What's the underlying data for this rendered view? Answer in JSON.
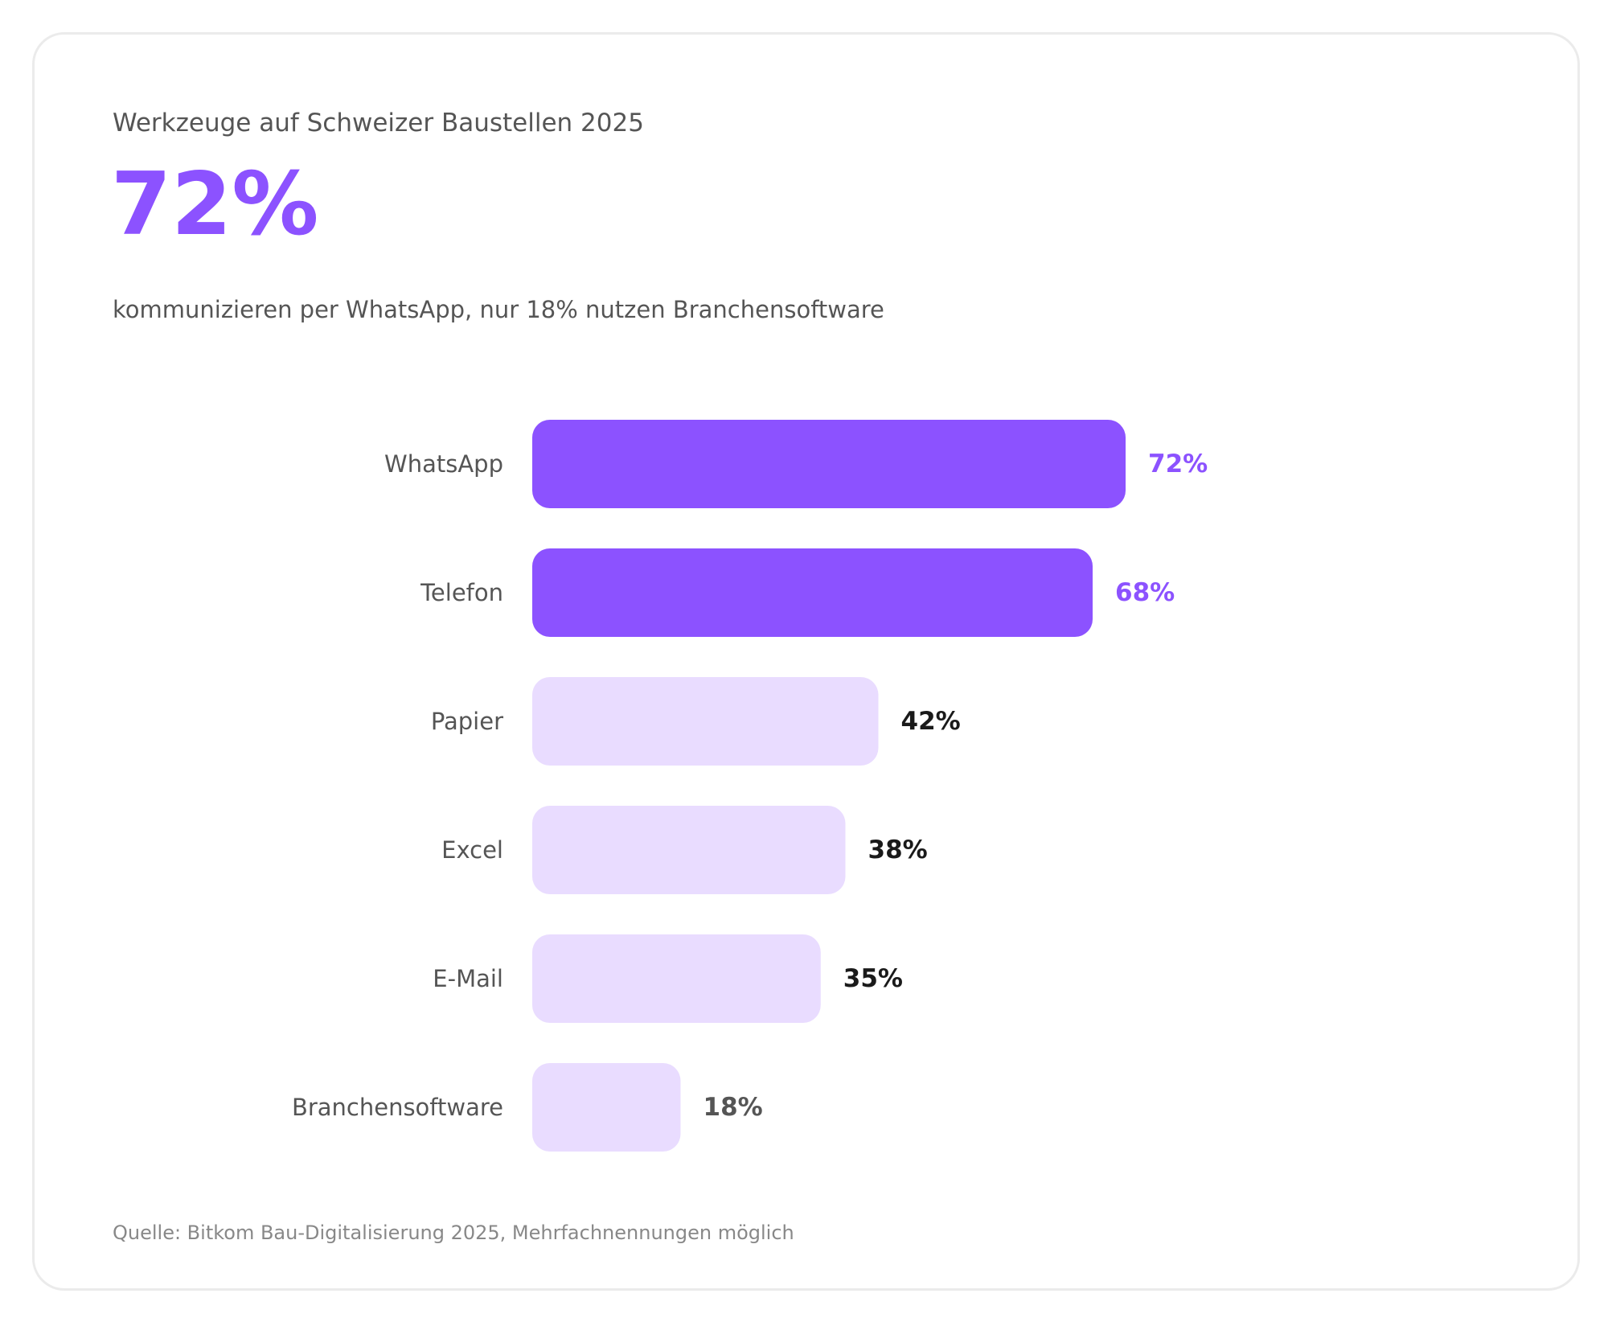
{
  "header": {
    "kicker": "Werkzeuge auf Schweizer Baustellen 2025",
    "hero_value": "72%",
    "subtitle": "kommunizieren per WhatsApp, nur 18% nutzen Branchensoftware"
  },
  "footer": {
    "source": "Quelle: Bitkom Bau-Digitalisierung 2025, Mehrfachnennungen möglich"
  },
  "colors": {
    "highlight": "#8c52ff",
    "muted_bar": "#e9dcff",
    "label_dark": "#1a1a1a",
    "label_gray": "#555555",
    "category_text": "#555555"
  },
  "chart_data": {
    "type": "bar",
    "orientation": "horizontal",
    "categories": [
      "WhatsApp",
      "Telefon",
      "Papier",
      "Excel",
      "E-Mail",
      "Branchensoftware"
    ],
    "values": [
      72,
      68,
      42,
      38,
      35,
      18
    ],
    "value_labels": [
      "72%",
      "68%",
      "42%",
      "38%",
      "35%",
      "18%"
    ],
    "highlighted": [
      true,
      true,
      false,
      false,
      false,
      false
    ],
    "unit": "%",
    "xlim": [
      0,
      100
    ],
    "grid": false
  }
}
